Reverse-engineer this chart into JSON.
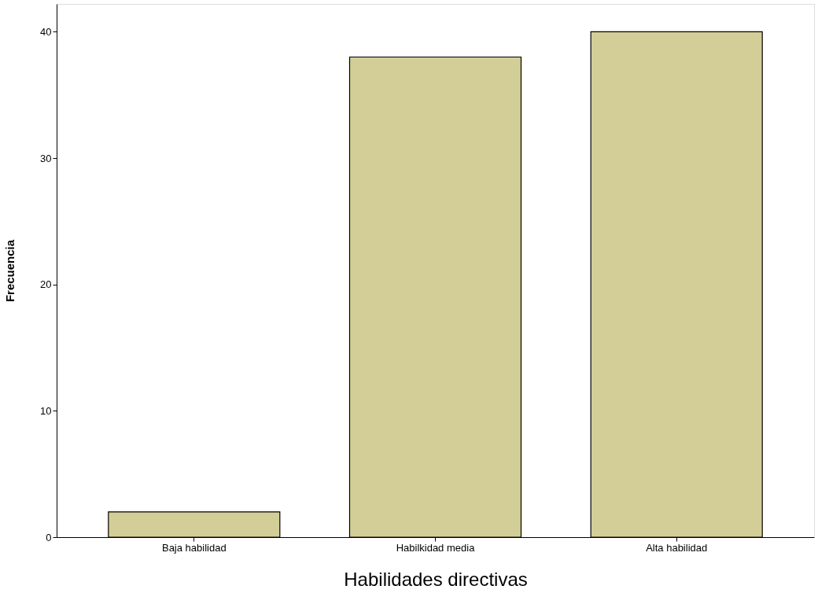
{
  "chart_data": {
    "type": "bar",
    "xlabel": "Habilidades  directivas",
    "ylabel": "Frecuencia",
    "categories": [
      "Baja habilidad",
      "Habilkidad media",
      "Alta habilidad"
    ],
    "values": [
      2,
      38,
      40
    ],
    "color": "#d3ce97",
    "ylim": [
      0,
      42.2
    ],
    "yticks": [
      0,
      10,
      20,
      30,
      40
    ],
    "grid": false
  }
}
